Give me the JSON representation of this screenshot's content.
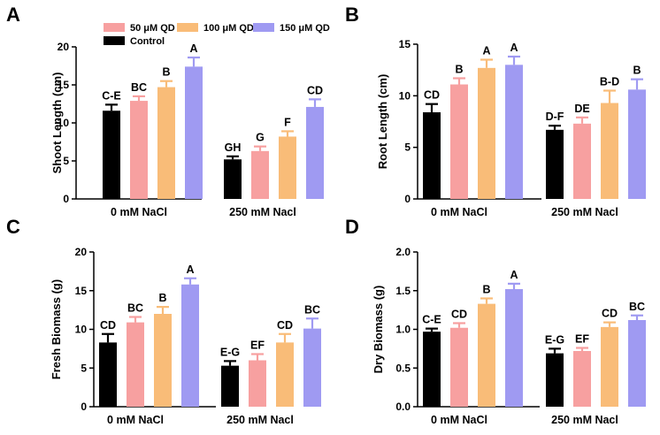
{
  "legend": [
    {
      "key": "control",
      "label": "Control",
      "color": "#000000"
    },
    {
      "key": "qd50",
      "label": "50 μM QD",
      "color": "#F7A0A0"
    },
    {
      "key": "qd100",
      "label": "100 μM QD",
      "color": "#F9BC78"
    },
    {
      "key": "qd150",
      "label": "150 μM QD",
      "color": "#9F9AF2"
    }
  ],
  "chart_data": [
    {
      "panel": "A",
      "type": "bar",
      "ylabel": "Shoot Length (cm)",
      "categories": [
        "0 mM NaCl",
        "250 mM Nacl"
      ],
      "ylim": [
        0,
        20
      ],
      "yticks": [
        0,
        5,
        10,
        15,
        20
      ],
      "series": [
        {
          "name": "Control",
          "values": [
            11.6,
            5.2
          ],
          "errors": [
            0.8,
            0.4
          ],
          "labels": [
            "C-E",
            "GH"
          ]
        },
        {
          "name": "50 μM QD",
          "values": [
            12.9,
            6.3
          ],
          "errors": [
            0.6,
            0.6
          ],
          "labels": [
            "BC",
            "G"
          ]
        },
        {
          "name": "100 μM QD",
          "values": [
            14.7,
            8.2
          ],
          "errors": [
            0.8,
            0.7
          ],
          "labels": [
            "B",
            "F"
          ]
        },
        {
          "name": "150 μM QD",
          "values": [
            17.4,
            12.1
          ],
          "errors": [
            1.2,
            1.0
          ],
          "labels": [
            "A",
            "CD"
          ]
        }
      ]
    },
    {
      "panel": "B",
      "type": "bar",
      "ylabel": "Root Length (cm)",
      "categories": [
        "0 mM NaCl",
        "250 mM Nacl"
      ],
      "ylim": [
        0,
        15
      ],
      "yticks": [
        0,
        5,
        10,
        15
      ],
      "series": [
        {
          "name": "Control",
          "values": [
            8.4,
            6.7
          ],
          "errors": [
            0.8,
            0.4
          ],
          "labels": [
            "CD",
            "D-F"
          ]
        },
        {
          "name": "50 μM QD",
          "values": [
            11.1,
            7.3
          ],
          "errors": [
            0.6,
            0.6
          ],
          "labels": [
            "B",
            "DE"
          ]
        },
        {
          "name": "100 μM QD",
          "values": [
            12.7,
            9.3
          ],
          "errors": [
            0.8,
            1.2
          ],
          "labels": [
            "A",
            "B-D"
          ]
        },
        {
          "name": "150 μM QD",
          "values": [
            13.0,
            10.6
          ],
          "errors": [
            0.8,
            1.0
          ],
          "labels": [
            "A",
            "B"
          ]
        }
      ]
    },
    {
      "panel": "C",
      "type": "bar",
      "ylabel": "Fresh Biomass (g)",
      "categories": [
        "0 mM NaCl",
        "250 mM Nacl"
      ],
      "ylim": [
        0,
        20
      ],
      "yticks": [
        0,
        5,
        10,
        15,
        20
      ],
      "series": [
        {
          "name": "Control",
          "values": [
            8.3,
            5.3
          ],
          "errors": [
            1.1,
            0.6
          ],
          "labels": [
            "CD",
            "E-G"
          ]
        },
        {
          "name": "50 μM QD",
          "values": [
            10.9,
            6.0
          ],
          "errors": [
            0.7,
            0.8
          ],
          "labels": [
            "BC",
            "EF"
          ]
        },
        {
          "name": "100 μM QD",
          "values": [
            12.0,
            8.3
          ],
          "errors": [
            0.9,
            1.1
          ],
          "labels": [
            "B",
            "CD"
          ]
        },
        {
          "name": "150 μM QD",
          "values": [
            15.8,
            10.1
          ],
          "errors": [
            0.8,
            1.3
          ],
          "labels": [
            "A",
            "BC"
          ]
        }
      ]
    },
    {
      "panel": "D",
      "type": "bar",
      "ylabel": "Dry Biomass (g)",
      "categories": [
        "0 mM NaCl",
        "250 mM Nacl"
      ],
      "ylim": [
        0,
        2.0
      ],
      "yticks": [
        0.0,
        0.5,
        1.0,
        1.5,
        2.0
      ],
      "series": [
        {
          "name": "Control",
          "values": [
            0.97,
            0.69
          ],
          "errors": [
            0.04,
            0.06
          ],
          "labels": [
            "C-E",
            "E-G"
          ]
        },
        {
          "name": "50 μM QD",
          "values": [
            1.02,
            0.72
          ],
          "errors": [
            0.06,
            0.04
          ],
          "labels": [
            "CD",
            "EF"
          ]
        },
        {
          "name": "100 μM QD",
          "values": [
            1.33,
            1.03
          ],
          "errors": [
            0.07,
            0.06
          ],
          "labels": [
            "B",
            "CD"
          ]
        },
        {
          "name": "150 μM QD",
          "values": [
            1.52,
            1.12
          ],
          "errors": [
            0.07,
            0.06
          ],
          "labels": [
            "A",
            "BC"
          ]
        }
      ]
    }
  ]
}
